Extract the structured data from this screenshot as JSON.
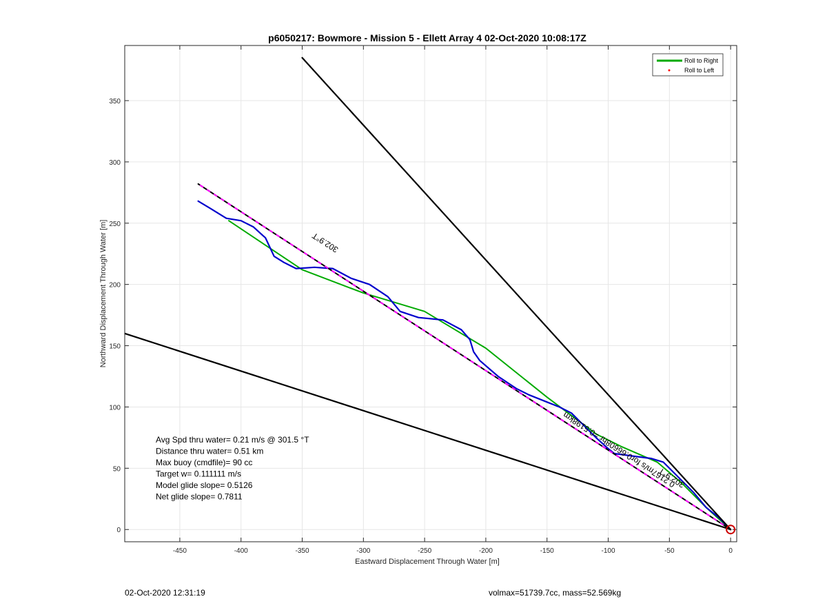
{
  "chart_data": {
    "type": "line",
    "title": "p6050217: Bowmore - Mission 5 - Ellett Array 4 02-Oct-2020 10:08:17Z",
    "xlabel": "Eastward Displacement Through Water [m]",
    "ylabel": "Northward Displacement Through Water [m]",
    "xlim": [
      -495,
      5
    ],
    "ylim": [
      -10,
      395
    ],
    "x_ticks": [
      -450,
      -400,
      -350,
      -300,
      -250,
      -200,
      -150,
      -100,
      -50,
      0
    ],
    "y_ticks": [
      0,
      50,
      100,
      150,
      200,
      250,
      300,
      350
    ],
    "grid": true,
    "legend_position": "top-right",
    "legend": [
      {
        "label": "Roll to Right",
        "color": "#00aa00"
      },
      {
        "label": "Roll to Left",
        "color": "#ff0000"
      }
    ],
    "series": [
      {
        "name": "Roll to Right",
        "color": "#00aa00",
        "points": [
          [
            0,
            0
          ],
          [
            -20,
            18
          ],
          [
            -40,
            38
          ],
          [
            -60,
            55
          ],
          [
            -90,
            68
          ],
          [
            -110,
            78
          ],
          [
            -150,
            108
          ],
          [
            -200,
            148
          ],
          [
            -250,
            178
          ],
          [
            -300,
            193
          ],
          [
            -350,
            212
          ],
          [
            -410,
            252
          ]
        ]
      },
      {
        "color": "#0000cc",
        "points": [
          [
            0,
            0
          ],
          [
            -10,
            10
          ],
          [
            -20,
            18
          ],
          [
            -30,
            30
          ],
          [
            -40,
            40
          ],
          [
            -46,
            46
          ],
          [
            -55,
            55
          ],
          [
            -65,
            58
          ],
          [
            -80,
            60
          ],
          [
            -95,
            62
          ],
          [
            -100,
            66
          ],
          [
            -110,
            75
          ],
          [
            -120,
            85
          ],
          [
            -130,
            95
          ],
          [
            -140,
            100
          ],
          [
            -150,
            104
          ],
          [
            -165,
            110
          ],
          [
            -175,
            115
          ],
          [
            -190,
            125
          ],
          [
            -205,
            138
          ],
          [
            -210,
            145
          ],
          [
            -213,
            155
          ],
          [
            -220,
            163
          ],
          [
            -235,
            171
          ],
          [
            -255,
            173
          ],
          [
            -270,
            178
          ],
          [
            -280,
            190
          ],
          [
            -295,
            200
          ],
          [
            -310,
            205
          ],
          [
            -325,
            213
          ],
          [
            -340,
            214
          ],
          [
            -355,
            213
          ],
          [
            -365,
            218
          ],
          [
            -373,
            223
          ],
          [
            -380,
            238
          ],
          [
            -390,
            247
          ],
          [
            -400,
            252
          ],
          [
            -412,
            254
          ],
          [
            -425,
            262
          ],
          [
            -435,
            268
          ]
        ]
      },
      {
        "color": "#000000",
        "dashed_overlay": "#ff00ff",
        "points": [
          [
            0,
            0
          ],
          [
            -435,
            282
          ]
        ]
      },
      {
        "color": "#000000",
        "points": [
          [
            0,
            0
          ],
          [
            -350,
            385
          ]
        ]
      },
      {
        "color": "#000000",
        "points": [
          [
            0,
            0
          ],
          [
            -495,
            160
          ]
        ]
      }
    ],
    "start_marker": {
      "x": 0,
      "y": 0,
      "color": "#cc0000"
    },
    "annotations": [
      {
        "text": "302.9°T",
        "x": -330,
        "y": 236,
        "rotation": 212.9
      },
      {
        "text": "302.9°T",
        "x": -47,
        "y": 44,
        "rotation": 212.9
      },
      {
        "text": "0.2167m/s for0.66608hr =0.5198km",
        "x": -90,
        "y": 67,
        "rotation": 212.9
      }
    ],
    "info_lines": [
      "Avg Spd thru water=  0.21 m/s @ 301.5 °T",
      "Distance thru water=  0.51 km",
      "Max buoy (cmdfile)= 90 cc",
      "Target w= 0.111111 m/s",
      "Model glide slope= 0.5126",
      "Net glide slope= 0.7811"
    ]
  },
  "footer": {
    "left": "02-Oct-2020 12:31:19",
    "right": "volmax=51739.7cc, mass=52.569kg"
  }
}
